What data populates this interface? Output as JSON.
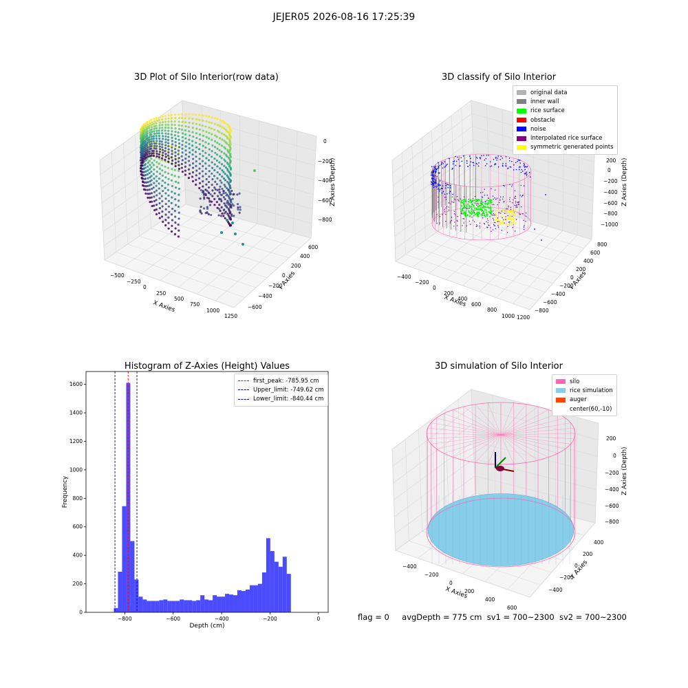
{
  "suptitle": "JEJER05 2026-08-16 17:25:39",
  "colors": {
    "hist_bar": "#0000ff",
    "first_peak": "#ff0000",
    "limit_line": "#0000aa",
    "silo": "#ff69b4",
    "rice_sim": "#87ceeb",
    "auger": "#ff4500"
  },
  "panel_raw": {
    "title": "3D Plot of Silo Interior(row data)",
    "xlabel": "X Axies",
    "ylabel": "Y Axies",
    "zlabel": "Z Axies (Depth)",
    "xticks": [
      "−500",
      "−250",
      "0",
      "250",
      "500",
      "750",
      "1000",
      "1250"
    ],
    "yticks": [
      "600",
      "400",
      "200",
      "0",
      "−200",
      "−400",
      "−600"
    ],
    "zticks": [
      "0",
      "−200",
      "−400",
      "−600",
      "−800"
    ],
    "colormap": "viridis"
  },
  "panel_classify": {
    "title": "3D classify of Silo Interior",
    "xlabel": "X Axies",
    "ylabel": "Y Axies",
    "zlabel": "Z Axies (Depth)",
    "xticks": [
      "−400",
      "−200",
      "0",
      "200",
      "400",
      "600",
      "800",
      "1000",
      "1200"
    ],
    "yticks": [
      "800",
      "600",
      "400",
      "200",
      "0",
      "−200",
      "−400",
      "−600",
      "−800"
    ],
    "zticks": [
      "400",
      "200",
      "0",
      "−200",
      "−400",
      "−600",
      "−800",
      "−1000"
    ],
    "legend": [
      {
        "label": "original data",
        "color": "#b3b3b3"
      },
      {
        "label": "inner wall",
        "color": "#808080"
      },
      {
        "label": "rice surface",
        "color": "#00ff00"
      },
      {
        "label": "obstacle",
        "color": "#ff0000"
      },
      {
        "label": "noise",
        "color": "#0000ff"
      },
      {
        "label": "interpolated rice surface",
        "color": "#800080"
      },
      {
        "label": "symmetric generated points",
        "color": "#ffff00"
      }
    ]
  },
  "panel_hist": {
    "title": "Histogram of Z-Axies (Height) Values",
    "xlabel": "Depth (cm)",
    "ylabel": "Frequency",
    "legend": [
      {
        "label": "first_peak: -785.95 cm",
        "color": "#ff0000"
      },
      {
        "label": "Upper_limit: -749.62 cm",
        "color": "#0000aa"
      },
      {
        "label": "Lower_limit: -840.44 cm",
        "color": "#0000aa"
      }
    ]
  },
  "panel_sim": {
    "title": "3D simulation of Silo Interior",
    "xlabel": "X Axies",
    "ylabel": "Y Axies",
    "zlabel": "Z Axies (Depth)",
    "xticks": [
      "−400",
      "−200",
      "0",
      "200",
      "400",
      "600"
    ],
    "yticks": [
      "400",
      "200",
      "0",
      "−200",
      "−400"
    ],
    "zticks": [
      "200",
      "0",
      "−200",
      "−400",
      "−600",
      "−800"
    ],
    "legend": [
      {
        "label": "silo",
        "color": "#ff69b4"
      },
      {
        "label": "rice simulation",
        "color": "#87ceeb"
      },
      {
        "label": "auger",
        "color": "#ff4500"
      },
      {
        "label": "center(60,-10)",
        "color": ""
      }
    ]
  },
  "status": {
    "flag": "flag = 0",
    "avg_depth": "avgDepth = 775 cm",
    "sv1": "sv1 = 700~2300",
    "sv2": "sv2 = 700~2300"
  },
  "chart_data": [
    {
      "type": "scatter",
      "title": "3D Plot of Silo Interior(row data)",
      "xlabel": "X Axies",
      "ylabel": "Y Axies",
      "zlabel": "Z Axies (Depth)",
      "xlim": [
        -500,
        1250
      ],
      "ylim": [
        -600,
        600
      ],
      "zlim": [
        -900,
        0
      ]
    },
    {
      "type": "scatter",
      "title": "3D classify of Silo Interior",
      "xlabel": "X Axies",
      "ylabel": "Y Axies",
      "zlabel": "Z Axies (Depth)",
      "xlim": [
        -400,
        1200
      ],
      "ylim": [
        -800,
        800
      ],
      "zlim": [
        -1000,
        400
      ]
    },
    {
      "type": "bar",
      "title": "Histogram of Z-Axies (Height) Values",
      "xlabel": "Depth (cm)",
      "ylabel": "Frequency",
      "xlim": [
        -960,
        40
      ],
      "ylim": [
        0,
        1690
      ],
      "xticks": [
        -800,
        -600,
        -400,
        -200,
        0
      ],
      "yticks": [
        0,
        200,
        400,
        600,
        800,
        1000,
        1200,
        1400,
        1600
      ],
      "bin_width": 17,
      "bin_start": -845,
      "values": [
        30,
        285,
        745,
        1610,
        500,
        230,
        110,
        90,
        80,
        80,
        80,
        85,
        90,
        80,
        80,
        80,
        90,
        85,
        85,
        80,
        85,
        120,
        90,
        85,
        120,
        110,
        110,
        130,
        125,
        120,
        155,
        150,
        160,
        190,
        190,
        200,
        280,
        520,
        430,
        355,
        320,
        390,
        270
      ],
      "vlines": [
        {
          "name": "first_peak",
          "x": -785.95
        },
        {
          "name": "Upper_limit",
          "x": -749.62
        },
        {
          "name": "Lower_limit",
          "x": -840.44
        }
      ]
    },
    {
      "type": "scatter",
      "title": "3D simulation of Silo Interior",
      "xlabel": "X Axies",
      "ylabel": "Y Axies",
      "zlabel": "Z Axies (Depth)",
      "xlim": [
        -500,
        600
      ],
      "ylim": [
        -500,
        500
      ],
      "zlim": [
        -800,
        300
      ]
    }
  ]
}
